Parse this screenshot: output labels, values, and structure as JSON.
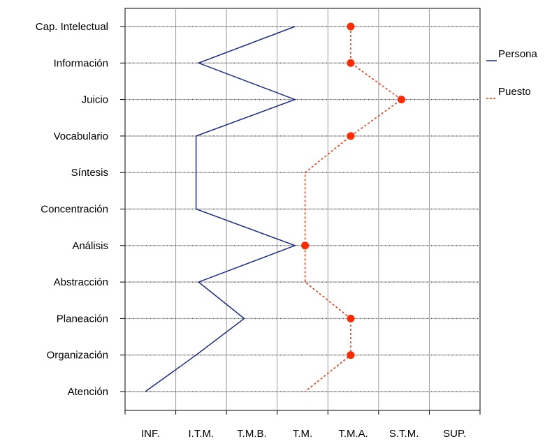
{
  "chart_data": {
    "type": "line",
    "title": "",
    "xlabel": "",
    "ylabel": "",
    "x_categories": [
      "INF.",
      "I.T.M.",
      "T.M.B.",
      "T.M.",
      "T.M.A.",
      "S.T.M.",
      "SUP."
    ],
    "y_categories": [
      "Cap. Intelectual",
      "Información",
      "Juicio",
      "Vocabulario",
      "Síntesis",
      "Concentración",
      "Análisis",
      "Abstracción",
      "Planeación",
      "Organización",
      "Atención"
    ],
    "xlim": [
      0,
      7
    ],
    "grid": true,
    "legend_position": "right",
    "series": [
      {
        "name": "Persona",
        "color": "#1a2a8c",
        "style": "solid",
        "markers": false,
        "values": [
          3.35,
          1.45,
          3.35,
          1.4,
          1.4,
          1.4,
          3.35,
          1.45,
          2.35,
          1.4,
          0.4
        ]
      },
      {
        "name": "Puesto",
        "color": "#ff2a00",
        "style": "dashed",
        "markers": true,
        "values": [
          4.45,
          4.45,
          5.45,
          4.45,
          3.55,
          3.55,
          3.55,
          3.55,
          4.45,
          4.45,
          3.55
        ],
        "marker_indices": [
          0,
          1,
          2,
          3,
          6,
          8,
          9
        ]
      }
    ]
  }
}
